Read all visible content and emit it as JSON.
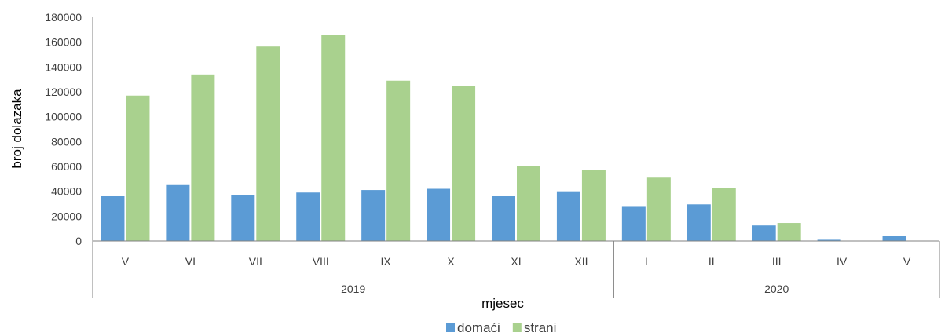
{
  "chart_data": {
    "type": "bar",
    "title": "",
    "xlabel": "mjesec",
    "ylabel": "broj dolazaka",
    "ylim": [
      0,
      180000
    ],
    "yticks": [
      "0",
      "20000",
      "40000",
      "60000",
      "80000",
      "100000",
      "120000",
      "140000",
      "160000",
      "180000"
    ],
    "categories": [
      "V",
      "VI",
      "VII",
      "VIII",
      "IX",
      "X",
      "XI",
      "XII",
      "I",
      "II",
      "III",
      "IV",
      "V"
    ],
    "groups": [
      {
        "label": "2019",
        "start": 0,
        "end": 7
      },
      {
        "label": "2020",
        "start": 8,
        "end": 12
      }
    ],
    "series": [
      {
        "name": "domaći",
        "color": "#5b9bd5",
        "values": [
          36000,
          45000,
          37000,
          39000,
          41000,
          42000,
          36000,
          40000,
          27500,
          29500,
          12500,
          1000,
          4000
        ]
      },
      {
        "name": "strani",
        "color": "#a9d18e",
        "values": [
          117000,
          134000,
          156500,
          165500,
          129000,
          125000,
          60500,
          57000,
          51000,
          42500,
          14500,
          300,
          0
        ]
      }
    ],
    "grid": false,
    "legend": "bottom-center"
  }
}
